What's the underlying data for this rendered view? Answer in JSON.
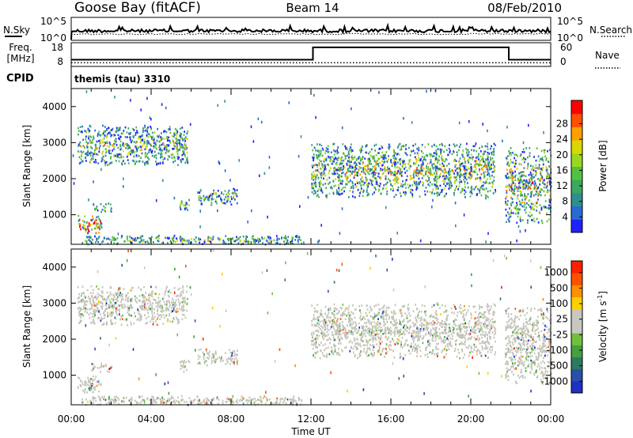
{
  "header": {
    "station": "Goose Bay (fitACF)",
    "beam": "Beam 14",
    "date": "08/Feb/2010"
  },
  "chart_data": [
    {
      "type": "line",
      "title": "",
      "left_label": "N.Sky",
      "right_label": "N.Search",
      "left_ticks": [
        "10^5",
        "10^0"
      ],
      "right_ticks": [
        "10^5",
        "10^0"
      ],
      "series": [
        {
          "name": "N.Sky",
          "style": "solid"
        },
        {
          "name": "N.Search",
          "style": "dotted"
        }
      ],
      "x": [
        0,
        1,
        2,
        3,
        4,
        5,
        6,
        7,
        8,
        9,
        10,
        11,
        12,
        13,
        14,
        15,
        16,
        17,
        18,
        19,
        20,
        21,
        22,
        23,
        24
      ],
      "xlabels": [
        "00:00",
        "04:00",
        "08:00",
        "12:00",
        "16:00",
        "20:00",
        "00:00"
      ]
    },
    {
      "type": "line",
      "left_label_1": "Freq.",
      "left_label_2": "[MHz]",
      "right_label": "Nave",
      "left_ticks": [
        "18",
        "8"
      ],
      "right_ticks": [
        "60",
        "0"
      ],
      "series": [
        {
          "name": "Freq.",
          "style": "solid",
          "x": [
            0,
            12.1,
            12.1,
            21.9,
            21.9,
            24
          ],
          "y": [
            10.5,
            10.5,
            16.5,
            16.5,
            10.5,
            10.5
          ]
        },
        {
          "name": "Nave",
          "style": "dotted",
          "x": [
            0,
            24
          ],
          "y": [
            9,
            9
          ]
        }
      ]
    },
    {
      "type": "text",
      "label": "CPID",
      "value": "themis (tau) 3310"
    },
    {
      "type": "heatmap",
      "ylabel": "Slant Range [km]",
      "yticks": [
        "1000",
        "2000",
        "3000",
        "4000"
      ],
      "ylim": [
        180,
        4500
      ],
      "xlim": [
        0,
        24
      ],
      "colorbar_label": "Power [dB]",
      "colorbar_ticks": [
        "4",
        "8",
        "12",
        "16",
        "20",
        "24",
        "28"
      ],
      "colors": [
        "#2020ff",
        "#2a6ad0",
        "#2e8f8f",
        "#3aa860",
        "#55c040",
        "#9ad820",
        "#d8d800",
        "#ffa000",
        "#ff5000",
        "#ff0000"
      ],
      "echo_regions": [
        {
          "t0": 0.3,
          "t1": 5.8,
          "r0": 2400,
          "r1": 3500,
          "intensity": 0.35
        },
        {
          "t0": 0.3,
          "t1": 1.5,
          "r0": 500,
          "r1": 1000,
          "intensity": 0.8
        },
        {
          "t0": 1.0,
          "t1": 2.0,
          "r0": 1100,
          "r1": 1350,
          "intensity": 0.3
        },
        {
          "t0": 5.4,
          "t1": 5.9,
          "r0": 1150,
          "r1": 1450,
          "intensity": 0.3
        },
        {
          "t0": 6.3,
          "t1": 8.3,
          "r0": 1300,
          "r1": 1750,
          "intensity": 0.35
        },
        {
          "t0": 12.0,
          "t1": 21.2,
          "r0": 1500,
          "r1": 3000,
          "intensity": 0.4
        },
        {
          "t0": 21.7,
          "t1": 24.0,
          "r0": 800,
          "r1": 2900,
          "intensity": 0.45
        },
        {
          "t0": 0.5,
          "t1": 11.5,
          "r0": 200,
          "r1": 450,
          "intensity": 0.3
        }
      ]
    },
    {
      "type": "heatmap",
      "ylabel": "Slant Range [km]",
      "yticks": [
        "1000",
        "2000",
        "3000",
        "4000"
      ],
      "ylim": [
        180,
        4500
      ],
      "xlim": [
        0,
        24
      ],
      "xticks": [
        "00:00",
        "04:00",
        "08:00",
        "12:00",
        "16:00",
        "20:00",
        "00:00"
      ],
      "xlabel": "Time UT",
      "colorbar_label": "Velocity [m s^-1]",
      "colorbar_label_main": "Velocity",
      "colorbar_label_unit": "[m s",
      "colorbar_label_exp": "-1",
      "colorbar_label_close": "]",
      "colorbar_ticks": [
        "1000",
        "500",
        "100",
        "25",
        "-25",
        "-100",
        "-500",
        "-1000"
      ],
      "colors": [
        "#2030c0",
        "#2a50a8",
        "#2e7a60",
        "#44a040",
        "#70c040",
        "#c8c8c0",
        "#c8c8c0",
        "#ffd000",
        "#ff9000",
        "#ff5000",
        "#ff2000"
      ],
      "ground_scatter_color": "#c4c4bc"
    }
  ]
}
